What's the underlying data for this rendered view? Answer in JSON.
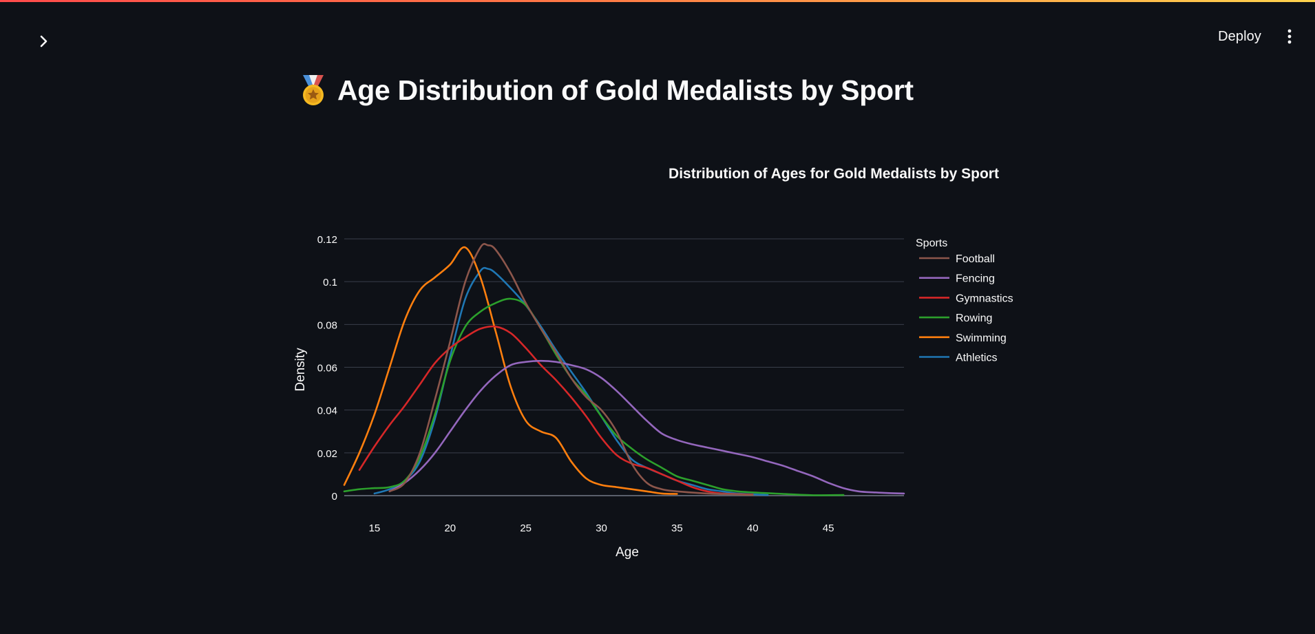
{
  "header": {
    "deploy_label": "Deploy",
    "sidebar_toggle_icon": "chevron-right-icon",
    "menu_icon": "vertical-dots-icon"
  },
  "page": {
    "title_icon": "medal-icon",
    "title": "Age Distribution of Gold Medalists by Sport"
  },
  "theme": {
    "background": "#0e1117",
    "text": "#fafafa",
    "grid": "#3a3f4b"
  },
  "chart_data": {
    "type": "line",
    "title": "Distribution of Ages for Gold Medalists by Sport",
    "xlabel": "Age",
    "ylabel": "Density",
    "xlim": [
      13,
      50
    ],
    "ylim": [
      0,
      0.12
    ],
    "xticks": [
      15,
      20,
      25,
      30,
      35,
      40,
      45
    ],
    "yticks": [
      0,
      0.02,
      0.04,
      0.06,
      0.08,
      0.1,
      0.12
    ],
    "ytick_labels": [
      "0",
      "0.02",
      "0.04",
      "0.06",
      "0.08",
      "0.1",
      "0.12"
    ],
    "grid": true,
    "legend_title": "Sports",
    "legend_position": "right",
    "series": [
      {
        "name": "Football",
        "color": "#8c564b",
        "x": [
          16,
          17,
          18,
          19,
          20,
          21,
          22,
          22.5,
          23,
          24,
          25,
          26,
          27,
          28,
          29,
          30,
          31,
          32,
          33,
          34,
          35,
          37,
          39,
          40
        ],
        "y": [
          0.002,
          0.006,
          0.02,
          0.045,
          0.072,
          0.1,
          0.116,
          0.117,
          0.115,
          0.104,
          0.09,
          0.078,
          0.067,
          0.055,
          0.046,
          0.04,
          0.03,
          0.015,
          0.006,
          0.003,
          0.002,
          0.001,
          0.0005,
          0.0003
        ]
      },
      {
        "name": "Fencing",
        "color": "#9467bd",
        "x": [
          16,
          17,
          18,
          19,
          20,
          21,
          22,
          23,
          24,
          25,
          26,
          27,
          28,
          29,
          30,
          31,
          32,
          33,
          34,
          35,
          36,
          37,
          38,
          39,
          40,
          41,
          42,
          43,
          44,
          45,
          46,
          47,
          48,
          49,
          50
        ],
        "y": [
          0.002,
          0.006,
          0.012,
          0.02,
          0.03,
          0.04,
          0.049,
          0.056,
          0.061,
          0.0625,
          0.063,
          0.0625,
          0.061,
          0.059,
          0.055,
          0.049,
          0.042,
          0.035,
          0.029,
          0.026,
          0.024,
          0.0225,
          0.021,
          0.0195,
          0.018,
          0.016,
          0.014,
          0.0115,
          0.009,
          0.006,
          0.0035,
          0.002,
          0.0015,
          0.0012,
          0.001
        ]
      },
      {
        "name": "Gymnastics",
        "color": "#d62728",
        "x": [
          14,
          15,
          16,
          17,
          18,
          19,
          20,
          21,
          22,
          23,
          24,
          25,
          26,
          27,
          28,
          29,
          30,
          31,
          32,
          33,
          34,
          35,
          36,
          37,
          38,
          40
        ],
        "y": [
          0.012,
          0.023,
          0.033,
          0.042,
          0.052,
          0.062,
          0.069,
          0.074,
          0.078,
          0.079,
          0.076,
          0.069,
          0.061,
          0.054,
          0.046,
          0.037,
          0.027,
          0.019,
          0.015,
          0.013,
          0.01,
          0.007,
          0.004,
          0.002,
          0.001,
          0.0005
        ]
      },
      {
        "name": "Rowing",
        "color": "#2ca02c",
        "x": [
          13,
          14,
          15,
          16,
          17,
          18,
          19,
          20,
          21,
          22,
          23,
          24,
          25,
          26,
          27,
          28,
          29,
          30,
          31,
          32,
          33,
          34,
          35,
          36,
          37,
          38,
          39,
          40,
          42,
          44,
          46
        ],
        "y": [
          0.002,
          0.003,
          0.0035,
          0.004,
          0.007,
          0.018,
          0.038,
          0.063,
          0.079,
          0.086,
          0.09,
          0.092,
          0.089,
          0.078,
          0.066,
          0.055,
          0.047,
          0.037,
          0.028,
          0.022,
          0.017,
          0.013,
          0.009,
          0.007,
          0.005,
          0.003,
          0.002,
          0.0015,
          0.0008,
          0.0002,
          0.0003
        ]
      },
      {
        "name": "Swimming",
        "color": "#ff7f0e",
        "x": [
          13,
          14,
          15,
          16,
          17,
          18,
          19,
          20,
          21,
          22,
          23,
          24,
          25,
          26,
          27,
          28,
          29,
          30,
          31,
          32,
          33,
          34,
          35
        ],
        "y": [
          0.005,
          0.02,
          0.038,
          0.06,
          0.082,
          0.096,
          0.102,
          0.108,
          0.116,
          0.102,
          0.077,
          0.051,
          0.035,
          0.03,
          0.027,
          0.016,
          0.008,
          0.005,
          0.004,
          0.003,
          0.002,
          0.001,
          0.0008
        ]
      },
      {
        "name": "Athletics",
        "color": "#1f77b4",
        "x": [
          15,
          16,
          17,
          18,
          19,
          20,
          21,
          22,
          22.5,
          23,
          24,
          25,
          26,
          27,
          28,
          29,
          30,
          31,
          32,
          33,
          34,
          35,
          36,
          37,
          38,
          39,
          40,
          41
        ],
        "y": [
          0.001,
          0.003,
          0.007,
          0.016,
          0.036,
          0.065,
          0.092,
          0.105,
          0.106,
          0.104,
          0.097,
          0.089,
          0.079,
          0.068,
          0.058,
          0.048,
          0.037,
          0.026,
          0.017,
          0.013,
          0.01,
          0.007,
          0.005,
          0.003,
          0.002,
          0.001,
          0.0006,
          0.0003
        ]
      }
    ]
  }
}
